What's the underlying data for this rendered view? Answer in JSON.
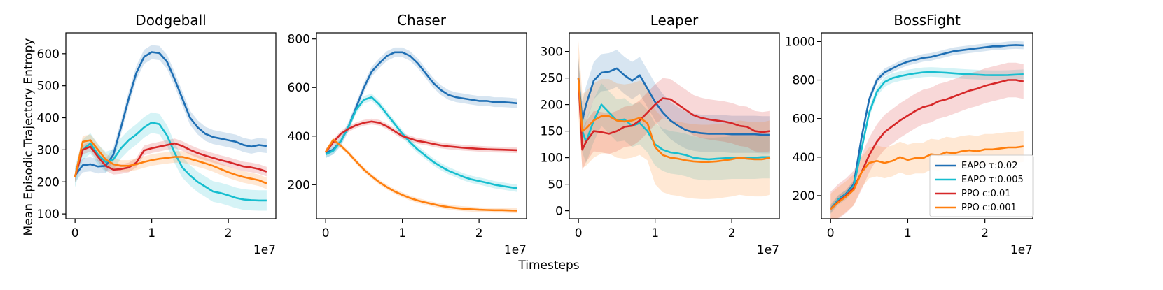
{
  "figure": {
    "shared_xlabel": "Timesteps",
    "shared_ylabel": "Mean Episodic Trajectory Entropy",
    "x_offset_text": "1e7"
  },
  "colors": {
    "EAPO τ:0.02": "#1f6fb4",
    "EAPO τ:0.005": "#17becf",
    "PPO c:0.01": "#d62728",
    "PPO c:0.001": "#ff7f0e"
  },
  "legend": [
    "EAPO τ:0.02",
    "EAPO τ:0.005",
    "PPO c:0.01",
    "PPO c:0.001"
  ],
  "chart_data": [
    {
      "type": "line",
      "title": "Dodgeball",
      "xlabel": "",
      "ylabel": "",
      "xlim": [
        -0.12,
        2.62
      ],
      "ylim": [
        85,
        665
      ],
      "xticks": [
        0,
        1,
        2
      ],
      "yticks": [
        100,
        200,
        300,
        400,
        500,
        600
      ],
      "series": [
        {
          "name": "EAPO τ:0.02",
          "x": [
            0,
            0.1,
            0.2,
            0.3,
            0.4,
            0.5,
            0.6,
            0.7,
            0.8,
            0.9,
            1.0,
            1.1,
            1.2,
            1.3,
            1.4,
            1.5,
            1.6,
            1.7,
            1.8,
            1.9,
            2.0,
            2.1,
            2.2,
            2.3,
            2.4,
            2.5
          ],
          "y": [
            220,
            252,
            255,
            248,
            250,
            285,
            370,
            460,
            540,
            590,
            605,
            602,
            575,
            520,
            460,
            400,
            370,
            350,
            340,
            335,
            330,
            325,
            315,
            310,
            315,
            312
          ],
          "band": 22
        },
        {
          "name": "EAPO τ:0.005",
          "x": [
            0,
            0.1,
            0.2,
            0.3,
            0.4,
            0.5,
            0.6,
            0.7,
            0.8,
            0.9,
            1.0,
            1.1,
            1.2,
            1.3,
            1.4,
            1.5,
            1.6,
            1.7,
            1.8,
            1.9,
            2.0,
            2.1,
            2.2,
            2.3,
            2.4,
            2.5
          ],
          "y": [
            215,
            300,
            320,
            285,
            262,
            270,
            305,
            330,
            348,
            370,
            385,
            380,
            345,
            290,
            245,
            220,
            200,
            185,
            170,
            165,
            158,
            150,
            145,
            143,
            142,
            142
          ],
          "band": 32
        },
        {
          "name": "PPO c:0.01",
          "x": [
            0,
            0.1,
            0.2,
            0.3,
            0.4,
            0.5,
            0.6,
            0.7,
            0.8,
            0.9,
            1.0,
            1.1,
            1.2,
            1.3,
            1.4,
            1.5,
            1.6,
            1.7,
            1.8,
            1.9,
            2.0,
            2.1,
            2.2,
            2.3,
            2.4,
            2.5
          ],
          "y": [
            215,
            300,
            310,
            278,
            250,
            238,
            240,
            245,
            260,
            298,
            305,
            310,
            315,
            320,
            312,
            300,
            290,
            282,
            275,
            268,
            262,
            255,
            248,
            245,
            240,
            232
          ],
          "band": 15
        },
        {
          "name": "PPO c:0.001",
          "x": [
            0,
            0.1,
            0.2,
            0.3,
            0.4,
            0.5,
            0.6,
            0.7,
            0.8,
            0.9,
            1.0,
            1.1,
            1.2,
            1.3,
            1.4,
            1.5,
            1.6,
            1.7,
            1.8,
            1.9,
            2.0,
            2.1,
            2.2,
            2.3,
            2.4,
            2.5
          ],
          "y": [
            215,
            325,
            330,
            300,
            270,
            255,
            250,
            250,
            255,
            262,
            268,
            272,
            275,
            278,
            278,
            272,
            265,
            258,
            250,
            240,
            230,
            222,
            215,
            210,
            205,
            195
          ],
          "band": 18
        }
      ]
    },
    {
      "type": "line",
      "title": "Chaser",
      "xlabel": "",
      "ylabel": "",
      "xlim": [
        -0.12,
        2.62
      ],
      "ylim": [
        60,
        825
      ],
      "xticks": [
        0,
        1,
        2
      ],
      "yticks": [
        200,
        400,
        600,
        800
      ],
      "series": [
        {
          "name": "EAPO τ:0.02",
          "x": [
            0,
            0.1,
            0.2,
            0.3,
            0.4,
            0.5,
            0.6,
            0.7,
            0.8,
            0.9,
            1.0,
            1.1,
            1.2,
            1.3,
            1.4,
            1.5,
            1.6,
            1.7,
            1.8,
            1.9,
            2.0,
            2.1,
            2.2,
            2.3,
            2.4,
            2.5
          ],
          "y": [
            330,
            345,
            380,
            440,
            520,
            600,
            665,
            700,
            730,
            745,
            745,
            730,
            700,
            660,
            620,
            590,
            570,
            560,
            555,
            550,
            545,
            545,
            540,
            540,
            538,
            535
          ],
          "band": 20
        },
        {
          "name": "EAPO τ:0.005",
          "x": [
            0,
            0.1,
            0.2,
            0.3,
            0.4,
            0.5,
            0.6,
            0.7,
            0.8,
            0.9,
            1.0,
            1.1,
            1.2,
            1.3,
            1.4,
            1.5,
            1.6,
            1.7,
            1.8,
            1.9,
            2.0,
            2.1,
            2.2,
            2.3,
            2.4,
            2.5
          ],
          "y": [
            325,
            340,
            380,
            440,
            510,
            550,
            560,
            530,
            490,
            450,
            410,
            375,
            345,
            320,
            295,
            275,
            258,
            245,
            232,
            222,
            215,
            208,
            200,
            195,
            190,
            185
          ],
          "band": 15
        },
        {
          "name": "PPO c:0.01",
          "x": [
            0,
            0.1,
            0.2,
            0.3,
            0.4,
            0.5,
            0.6,
            0.7,
            0.8,
            0.9,
            1.0,
            1.1,
            1.2,
            1.3,
            1.4,
            1.5,
            1.6,
            1.7,
            1.8,
            1.9,
            2.0,
            2.1,
            2.2,
            2.3,
            2.4,
            2.5
          ],
          "y": [
            335,
            375,
            410,
            430,
            445,
            455,
            460,
            455,
            440,
            420,
            400,
            390,
            380,
            375,
            368,
            362,
            358,
            355,
            352,
            350,
            348,
            346,
            345,
            344,
            343,
            342
          ],
          "band": 12
        },
        {
          "name": "PPO c:0.001",
          "x": [
            0,
            0.1,
            0.2,
            0.3,
            0.4,
            0.5,
            0.6,
            0.7,
            0.8,
            0.9,
            1.0,
            1.1,
            1.2,
            1.3,
            1.4,
            1.5,
            1.6,
            1.7,
            1.8,
            1.9,
            2.0,
            2.1,
            2.2,
            2.3,
            2.4,
            2.5
          ],
          "y": [
            335,
            385,
            360,
            330,
            295,
            262,
            235,
            210,
            190,
            172,
            158,
            145,
            135,
            127,
            120,
            113,
            108,
            104,
            101,
            99,
            97,
            96,
            95,
            95,
            94,
            93
          ],
          "band": 10
        }
      ]
    },
    {
      "type": "line",
      "title": "Leaper",
      "xlabel": "",
      "ylabel": "",
      "xlim": [
        -0.12,
        2.62
      ],
      "ylim": [
        -15,
        335
      ],
      "xticks": [
        0,
        1,
        2
      ],
      "yticks": [
        0,
        50,
        100,
        150,
        200,
        250,
        300
      ],
      "series": [
        {
          "name": "EAPO τ:0.02",
          "x": [
            0,
            0.05,
            0.1,
            0.2,
            0.3,
            0.4,
            0.5,
            0.6,
            0.7,
            0.8,
            0.9,
            1.0,
            1.1,
            1.2,
            1.3,
            1.4,
            1.5,
            1.6,
            1.7,
            1.8,
            1.9,
            2.0,
            2.1,
            2.2,
            2.3,
            2.4,
            2.5
          ],
          "y": [
            250,
            170,
            200,
            245,
            260,
            262,
            268,
            255,
            245,
            255,
            230,
            205,
            185,
            170,
            160,
            152,
            148,
            146,
            145,
            145,
            145,
            144,
            144,
            144,
            144,
            143,
            143
          ],
          "band": 35
        },
        {
          "name": "EAPO τ:0.005",
          "x": [
            0,
            0.05,
            0.1,
            0.2,
            0.3,
            0.4,
            0.5,
            0.6,
            0.7,
            0.8,
            0.9,
            1.0,
            1.1,
            1.2,
            1.3,
            1.4,
            1.5,
            1.6,
            1.7,
            1.8,
            1.9,
            2.0,
            2.1,
            2.2,
            2.3,
            2.4,
            2.5
          ],
          "y": [
            250,
            150,
            130,
            170,
            200,
            185,
            170,
            172,
            160,
            165,
            150,
            125,
            115,
            110,
            108,
            105,
            100,
            98,
            97,
            98,
            99,
            100,
            100,
            100,
            100,
            101,
            101
          ],
          "band": 40
        },
        {
          "name": "PPO c:0.01",
          "x": [
            0,
            0.05,
            0.1,
            0.2,
            0.3,
            0.4,
            0.5,
            0.6,
            0.7,
            0.8,
            0.9,
            1.0,
            1.1,
            1.2,
            1.3,
            1.4,
            1.5,
            1.6,
            1.7,
            1.8,
            1.9,
            2.0,
            2.1,
            2.2,
            2.3,
            2.4,
            2.5
          ],
          "y": [
            250,
            115,
            130,
            150,
            148,
            145,
            150,
            158,
            160,
            170,
            185,
            200,
            212,
            210,
            200,
            190,
            180,
            175,
            172,
            170,
            168,
            165,
            160,
            158,
            150,
            148,
            150
          ],
          "band": 38
        },
        {
          "name": "PPO c:0.001",
          "x": [
            0,
            0.05,
            0.1,
            0.2,
            0.3,
            0.4,
            0.5,
            0.6,
            0.7,
            0.8,
            0.9,
            1.0,
            1.1,
            1.2,
            1.3,
            1.4,
            1.5,
            1.6,
            1.7,
            1.8,
            1.9,
            2.0,
            2.1,
            2.2,
            2.3,
            2.4,
            2.5
          ],
          "y": [
            250,
            150,
            155,
            170,
            178,
            178,
            170,
            168,
            170,
            175,
            165,
            120,
            105,
            100,
            98,
            95,
            93,
            92,
            92,
            93,
            95,
            97,
            100,
            98,
            97,
            97,
            100
          ],
          "band": 70
        }
      ]
    },
    {
      "type": "line",
      "title": "BossFight",
      "xlabel": "",
      "ylabel": "",
      "xlim": [
        -0.12,
        2.62
      ],
      "ylim": [
        80,
        1045
      ],
      "xticks": [
        0,
        1,
        2
      ],
      "yticks": [
        200,
        400,
        600,
        800,
        1000
      ],
      "series": [
        {
          "name": "EAPO τ:0.02",
          "x": [
            0,
            0.1,
            0.2,
            0.3,
            0.4,
            0.5,
            0.6,
            0.7,
            0.8,
            0.9,
            1.0,
            1.1,
            1.2,
            1.3,
            1.4,
            1.5,
            1.6,
            1.7,
            1.8,
            1.9,
            2.0,
            2.1,
            2.2,
            2.3,
            2.4,
            2.5
          ],
          "y": [
            130,
            180,
            210,
            260,
            500,
            700,
            800,
            840,
            860,
            880,
            895,
            905,
            915,
            920,
            930,
            940,
            950,
            955,
            960,
            965,
            970,
            975,
            975,
            980,
            982,
            980
          ],
          "band": 20
        },
        {
          "name": "EAPO τ:0.005",
          "x": [
            0,
            0.1,
            0.2,
            0.3,
            0.4,
            0.5,
            0.6,
            0.7,
            0.8,
            0.9,
            1.0,
            1.1,
            1.2,
            1.3,
            1.4,
            1.5,
            1.6,
            1.7,
            1.8,
            1.9,
            2.0,
            2.1,
            2.2,
            2.3,
            2.4,
            2.5
          ],
          "y": [
            130,
            178,
            205,
            250,
            440,
            630,
            740,
            790,
            810,
            820,
            828,
            835,
            840,
            842,
            840,
            838,
            835,
            832,
            830,
            828,
            826,
            825,
            825,
            826,
            828,
            830
          ],
          "band": 25
        },
        {
          "name": "PPO c:0.01",
          "x": [
            0,
            0.1,
            0.2,
            0.3,
            0.4,
            0.5,
            0.6,
            0.7,
            0.8,
            0.9,
            1.0,
            1.1,
            1.2,
            1.3,
            1.4,
            1.5,
            1.6,
            1.7,
            1.8,
            1.9,
            2.0,
            2.1,
            2.2,
            2.3,
            2.4,
            2.5
          ],
          "y": [
            130,
            170,
            200,
            240,
            320,
            410,
            480,
            530,
            560,
            590,
            615,
            640,
            660,
            670,
            690,
            700,
            715,
            730,
            745,
            755,
            770,
            780,
            790,
            800,
            800,
            792
          ],
          "band": 90
        },
        {
          "name": "PPO c:0.001",
          "x": [
            0,
            0.1,
            0.2,
            0.3,
            0.4,
            0.5,
            0.6,
            0.7,
            0.8,
            0.9,
            1.0,
            1.1,
            1.2,
            1.3,
            1.4,
            1.5,
            1.6,
            1.7,
            1.8,
            1.9,
            2.0,
            2.1,
            2.2,
            2.3,
            2.4,
            2.5
          ],
          "y": [
            130,
            165,
            195,
            230,
            320,
            370,
            380,
            370,
            380,
            400,
            385,
            395,
            395,
            415,
            410,
            425,
            420,
            430,
            435,
            430,
            440,
            440,
            445,
            450,
            450,
            455
          ],
          "band": 80
        }
      ]
    }
  ]
}
